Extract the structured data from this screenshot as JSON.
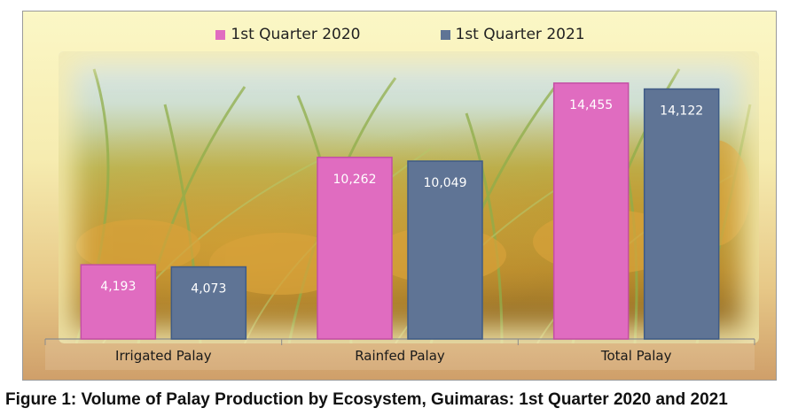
{
  "caption": "Figure 1: Volume of Palay Production by Ecosystem, Guimaras: 1st Quarter 2020 and 2021",
  "legend": [
    {
      "label": "1st Quarter 2020",
      "color": "#e06cc0"
    },
    {
      "label": "1st Quarter 2021",
      "color": "#5f7495"
    }
  ],
  "chart_data": {
    "type": "bar",
    "categories": [
      "Irrigated Palay",
      "Rainfed Palay",
      "Total Palay"
    ],
    "series": [
      {
        "name": "1st Quarter 2020",
        "values": [
          4193,
          10262,
          14455
        ],
        "labels": [
          "4,193",
          "10,262",
          "14,455"
        ],
        "color": "#e06cc0"
      },
      {
        "name": "1st Quarter 2021",
        "values": [
          4073,
          10049,
          14122
        ],
        "labels": [
          "4,073",
          "10,049",
          "14,122"
        ],
        "color": "#5f7495"
      }
    ],
    "ylim": [
      0,
      16000
    ],
    "grid": false,
    "legend_position": "top-center"
  }
}
